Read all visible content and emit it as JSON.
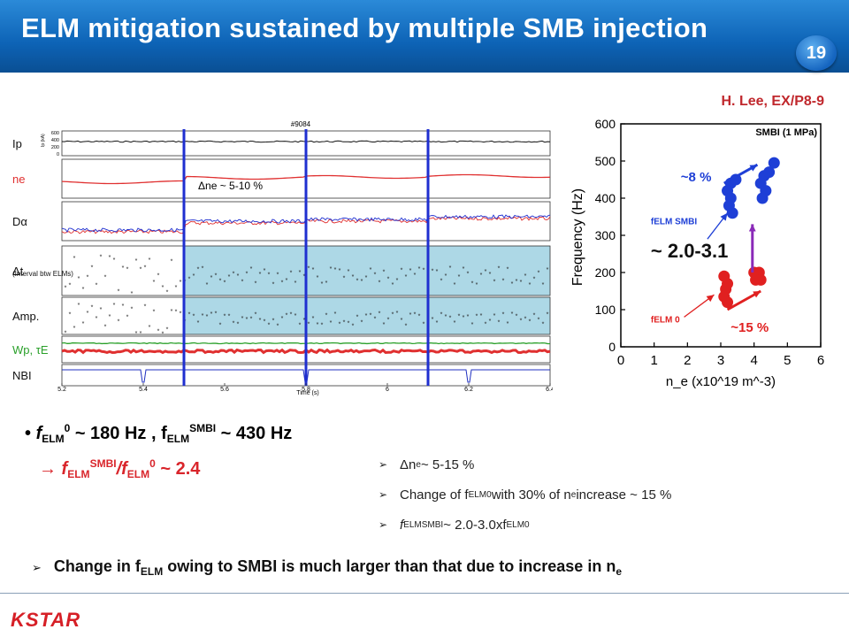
{
  "header": {
    "title": "ELM mitigation sustained by multiple SMB injection",
    "page_number": "19"
  },
  "citation": "H. Lee, EX/P8-9",
  "timetrace": {
    "shot": "#9084",
    "panel_labels": [
      "Ip",
      "ne",
      "Dα",
      "Δt",
      "Amp.",
      "Wp, τE",
      "NBI"
    ],
    "interval_note": "(Interval btw ELMs)",
    "ne_annotation": "Δne ~ 5-10 %",
    "x_ticks": [
      "5.2",
      "5.4",
      "5.6",
      "5.8",
      "6",
      "6.2",
      "6.4"
    ],
    "x_label": "Time (s)",
    "ip_ticks": [
      "600",
      "400",
      "200",
      "0"
    ],
    "ip_unit": "Ip (kA)",
    "smbi_lines_s": [
      5.5,
      5.8,
      6.1
    ],
    "colors": {
      "ne": "#e03030",
      "wp": "#2aa02a",
      "tau": "#e03030",
      "smbi_line": "#1f2fd0",
      "shade": "#add8e6"
    }
  },
  "chart_data": {
    "type": "scatter",
    "title": "SMBI (1 MPa)",
    "xlabel": "n_e (x10^19 m^-3)",
    "ylabel": "Frequency (Hz)",
    "xlim": [
      0,
      6
    ],
    "ylim": [
      0,
      600
    ],
    "x_ticks": [
      0,
      1,
      2,
      3,
      4,
      5,
      6
    ],
    "y_ticks": [
      0,
      100,
      200,
      300,
      400,
      500,
      600
    ],
    "series": [
      {
        "name": "fELM0",
        "color": "#e02020",
        "points": [
          [
            3.1,
            190
          ],
          [
            3.2,
            170
          ],
          [
            3.15,
            155
          ],
          [
            3.1,
            135
          ],
          [
            3.2,
            120
          ],
          [
            4.0,
            200
          ],
          [
            4.15,
            200
          ],
          [
            4.05,
            180
          ],
          [
            4.2,
            180
          ]
        ]
      },
      {
        "name": "fELM SMBI",
        "color": "#1e3fd6",
        "points": [
          [
            3.3,
            440
          ],
          [
            3.45,
            450
          ],
          [
            3.2,
            420
          ],
          [
            3.3,
            400
          ],
          [
            3.25,
            380
          ],
          [
            3.35,
            360
          ],
          [
            4.3,
            460
          ],
          [
            4.45,
            470
          ],
          [
            4.2,
            440
          ],
          [
            4.35,
            420
          ],
          [
            4.25,
            400
          ],
          [
            4.6,
            495
          ]
        ]
      }
    ],
    "annotations": {
      "label_smbi": "fELM SMBI",
      "label_zero": "fELM 0",
      "pct_top": "~8 %",
      "pct_bottom": "~15 %",
      "ratio": "~ 2.0-3.1"
    }
  },
  "bullet": {
    "line1_a": "f",
    "line1_b": "ELM",
    "line1_c": "0",
    "line1_d": " ~ 180 Hz , f",
    "line1_e": "ELM",
    "line1_f": "SMBI",
    "line1_g": " ~ 430 Hz",
    "line2_a": "→ f",
    "line2_b": "ELM",
    "line2_c": "SMBI",
    "line2_d": "/f",
    "line2_e": "ELM",
    "line2_f": "0",
    "line2_g": " ~ 2.4"
  },
  "checklist": [
    {
      "a": "Δn",
      "s": "e",
      "b": " ~ 5-15 %"
    },
    {
      "a": "Change of f",
      "s": "ELM",
      "t": "0",
      "b": " with 30% of n",
      "s2": "e",
      "c": " increase ~ 15 %"
    },
    {
      "a": "f",
      "s": "ELM",
      "t": "SMBI",
      "b": " ~ 2.0-3.0xf",
      "s2": "ELM",
      "t2": "0"
    }
  ],
  "conclusion": {
    "a": "Change in f",
    "s": "ELM",
    "b": " owing to SMBI is much larger than that due to increase in n",
    "s2": "e"
  },
  "footer": {
    "logo": "KSTAR"
  }
}
